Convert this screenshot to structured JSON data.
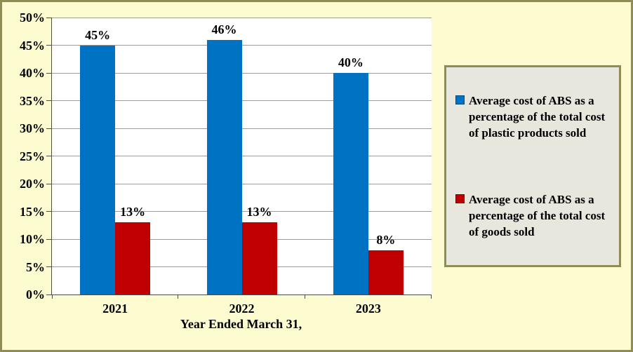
{
  "chart_data": {
    "type": "bar",
    "categories": [
      "2021",
      "2022",
      "2023"
    ],
    "series": [
      {
        "key": "plastic-products",
        "name": "Average cost of ABS as a percentage of the total cost of plastic products sold",
        "name_lines": [
          "Average cost of ABS as a",
          "percentage of the total cost",
          "of plastic products sold"
        ],
        "color": "#0072C4",
        "values": [
          45,
          46,
          40
        ],
        "value_labels": [
          "45%",
          "46%",
          "40%"
        ]
      },
      {
        "key": "goods",
        "name": "Average cost of ABS as a percentage of the total cost of goods sold",
        "name_lines": [
          "Average cost of ABS as a",
          "percentage of the total cost",
          "of goods sold"
        ],
        "color": "#C00000",
        "values": [
          13,
          13,
          8
        ],
        "value_labels": [
          "13%",
          "13%",
          "8%"
        ]
      }
    ],
    "xlabel": "Year Ended March 31,",
    "ylabel": "",
    "ylim": [
      0,
      50
    ],
    "ytick_step": 5,
    "yticks": [
      "0%",
      "5%",
      "10%",
      "15%",
      "20%",
      "25%",
      "30%",
      "35%",
      "40%",
      "45%",
      "50%"
    ],
    "grid": true,
    "legend_position": "right"
  },
  "style": {
    "background": "#FDFBD0",
    "outer_border": "#908C55",
    "plot_background": "#FFFFFF",
    "gridline_color": "#9C9C9C",
    "axis_color": "#4D4D4D",
    "legend_background": "#E8E7DD",
    "legend_border": "#908C55",
    "series_blue": "#0072C4",
    "series_red": "#C00000",
    "text_color": "#000000"
  }
}
